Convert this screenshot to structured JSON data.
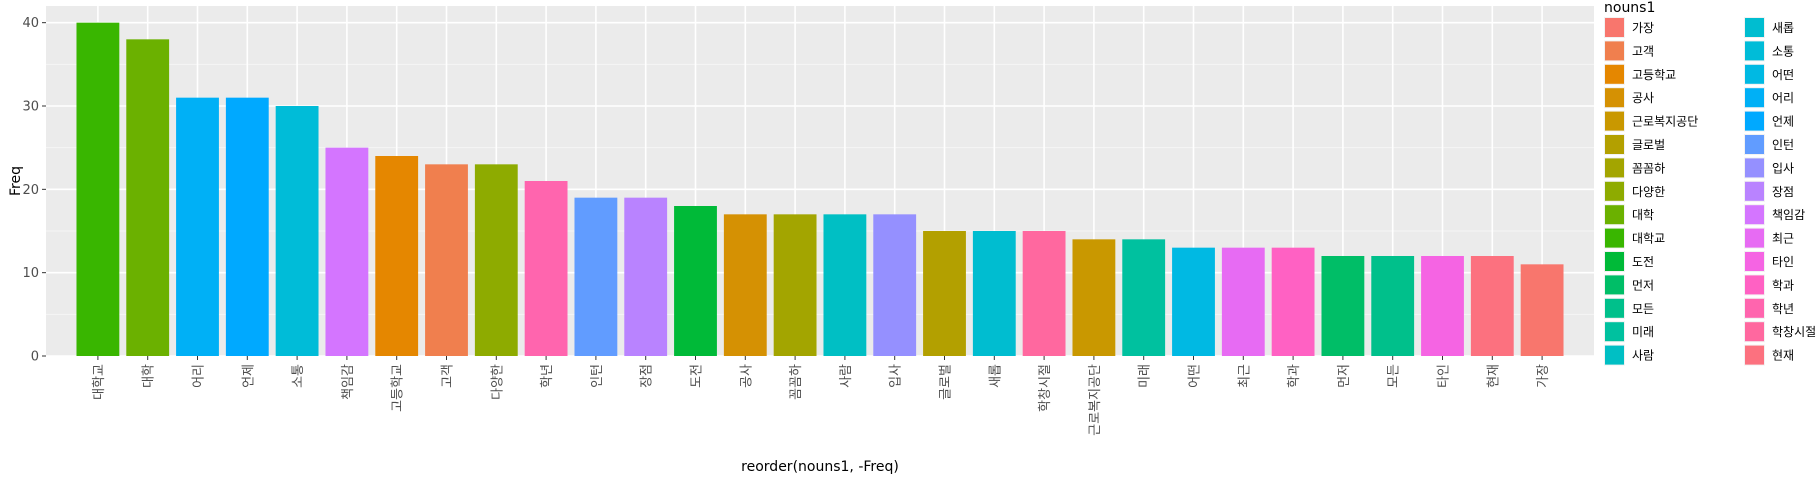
{
  "chart_data": {
    "type": "bar",
    "xlabel": "reorder(nouns1, -Freq)",
    "ylabel": "Freq",
    "ylim": [
      0,
      42
    ],
    "yticks": [
      0,
      10,
      20,
      30,
      40
    ],
    "grid": true,
    "legend_title": "nouns1",
    "legend_placement": "right",
    "categories": [
      "대학교",
      "대학",
      "어리",
      "언제",
      "소통",
      "책임감",
      "고등학교",
      "고객",
      "다양한",
      "학년",
      "인턴",
      "장점",
      "도전",
      "공사",
      "꼼꼼하",
      "사람",
      "입사",
      "글로벌",
      "새롭",
      "학창시절",
      "근로복지공단",
      "미래",
      "어떤",
      "최근",
      "학과",
      "먼저",
      "모든",
      "타인",
      "현재",
      "가장"
    ],
    "values": [
      40,
      38,
      31,
      31,
      30,
      25,
      24,
      23,
      23,
      21,
      19,
      19,
      18,
      17,
      17,
      17,
      17,
      15,
      15,
      15,
      14,
      14,
      13,
      13,
      13,
      12,
      12,
      12,
      12,
      11
    ],
    "legend_entries": [
      "가장",
      "고객",
      "고등학교",
      "공사",
      "근로복지공단",
      "글로벌",
      "꼼꼼하",
      "다양한",
      "대학",
      "대학교",
      "도전",
      "먼저",
      "모든",
      "미래",
      "사람",
      "새롭",
      "소통",
      "어떤",
      "어리",
      "언제",
      "인턴",
      "입사",
      "장점",
      "책임감",
      "최근",
      "타인",
      "학과",
      "학년",
      "학창시절",
      "현재"
    ],
    "legend_colors": [
      "#F8766D",
      "#F07F4E",
      "#E58700",
      "#D59103",
      "#C99800",
      "#B3A000",
      "#A3A500",
      "#8EAB00",
      "#6BB100",
      "#39B600",
      "#00BA38",
      "#00BE67",
      "#00C08B",
      "#00C19F",
      "#00BFC4",
      "#00BDD0",
      "#00BCD8",
      "#00B9E3",
      "#00B0F6",
      "#00A9FF",
      "#619CFF",
      "#9590FF",
      "#B983FF",
      "#D475FF",
      "#E76BF3",
      "#F564E3",
      "#FF61C3",
      "#FF65AE",
      "#FF689F",
      "#FC717F"
    ]
  }
}
